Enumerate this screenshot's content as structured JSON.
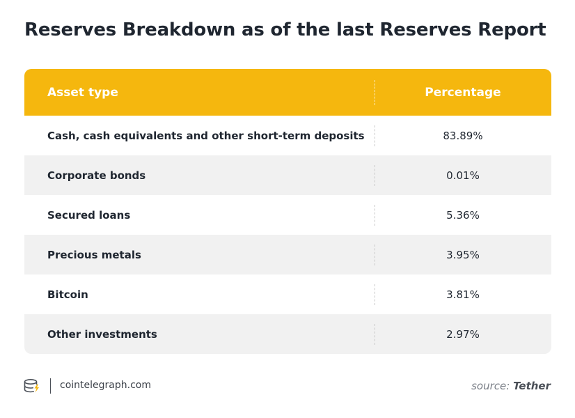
{
  "chart_data": {
    "type": "table",
    "title": "Reserves Breakdown as of the last Reserves Report",
    "columns": [
      "Asset type",
      "Percentage"
    ],
    "rows": [
      {
        "asset": "Cash, cash equivalents and other short-term deposits",
        "percentage": "83.89%"
      },
      {
        "asset": "Corporate bonds",
        "percentage": "0.01%"
      },
      {
        "asset": "Secured loans",
        "percentage": "5.36%"
      },
      {
        "asset": "Precious metals",
        "percentage": "3.95%"
      },
      {
        "asset": "Bitcoin",
        "percentage": "3.81%"
      },
      {
        "asset": "Other investments",
        "percentage": "2.97%"
      }
    ]
  },
  "footer": {
    "site": "cointelegraph.com",
    "source_label": "source:",
    "source_name": "Tether",
    "logo_icon": "cointelegraph-logo-icon"
  },
  "colors": {
    "header_bg": "#f5b70e",
    "alt_row_bg": "#f1f1f1",
    "text": "#1f2630"
  }
}
